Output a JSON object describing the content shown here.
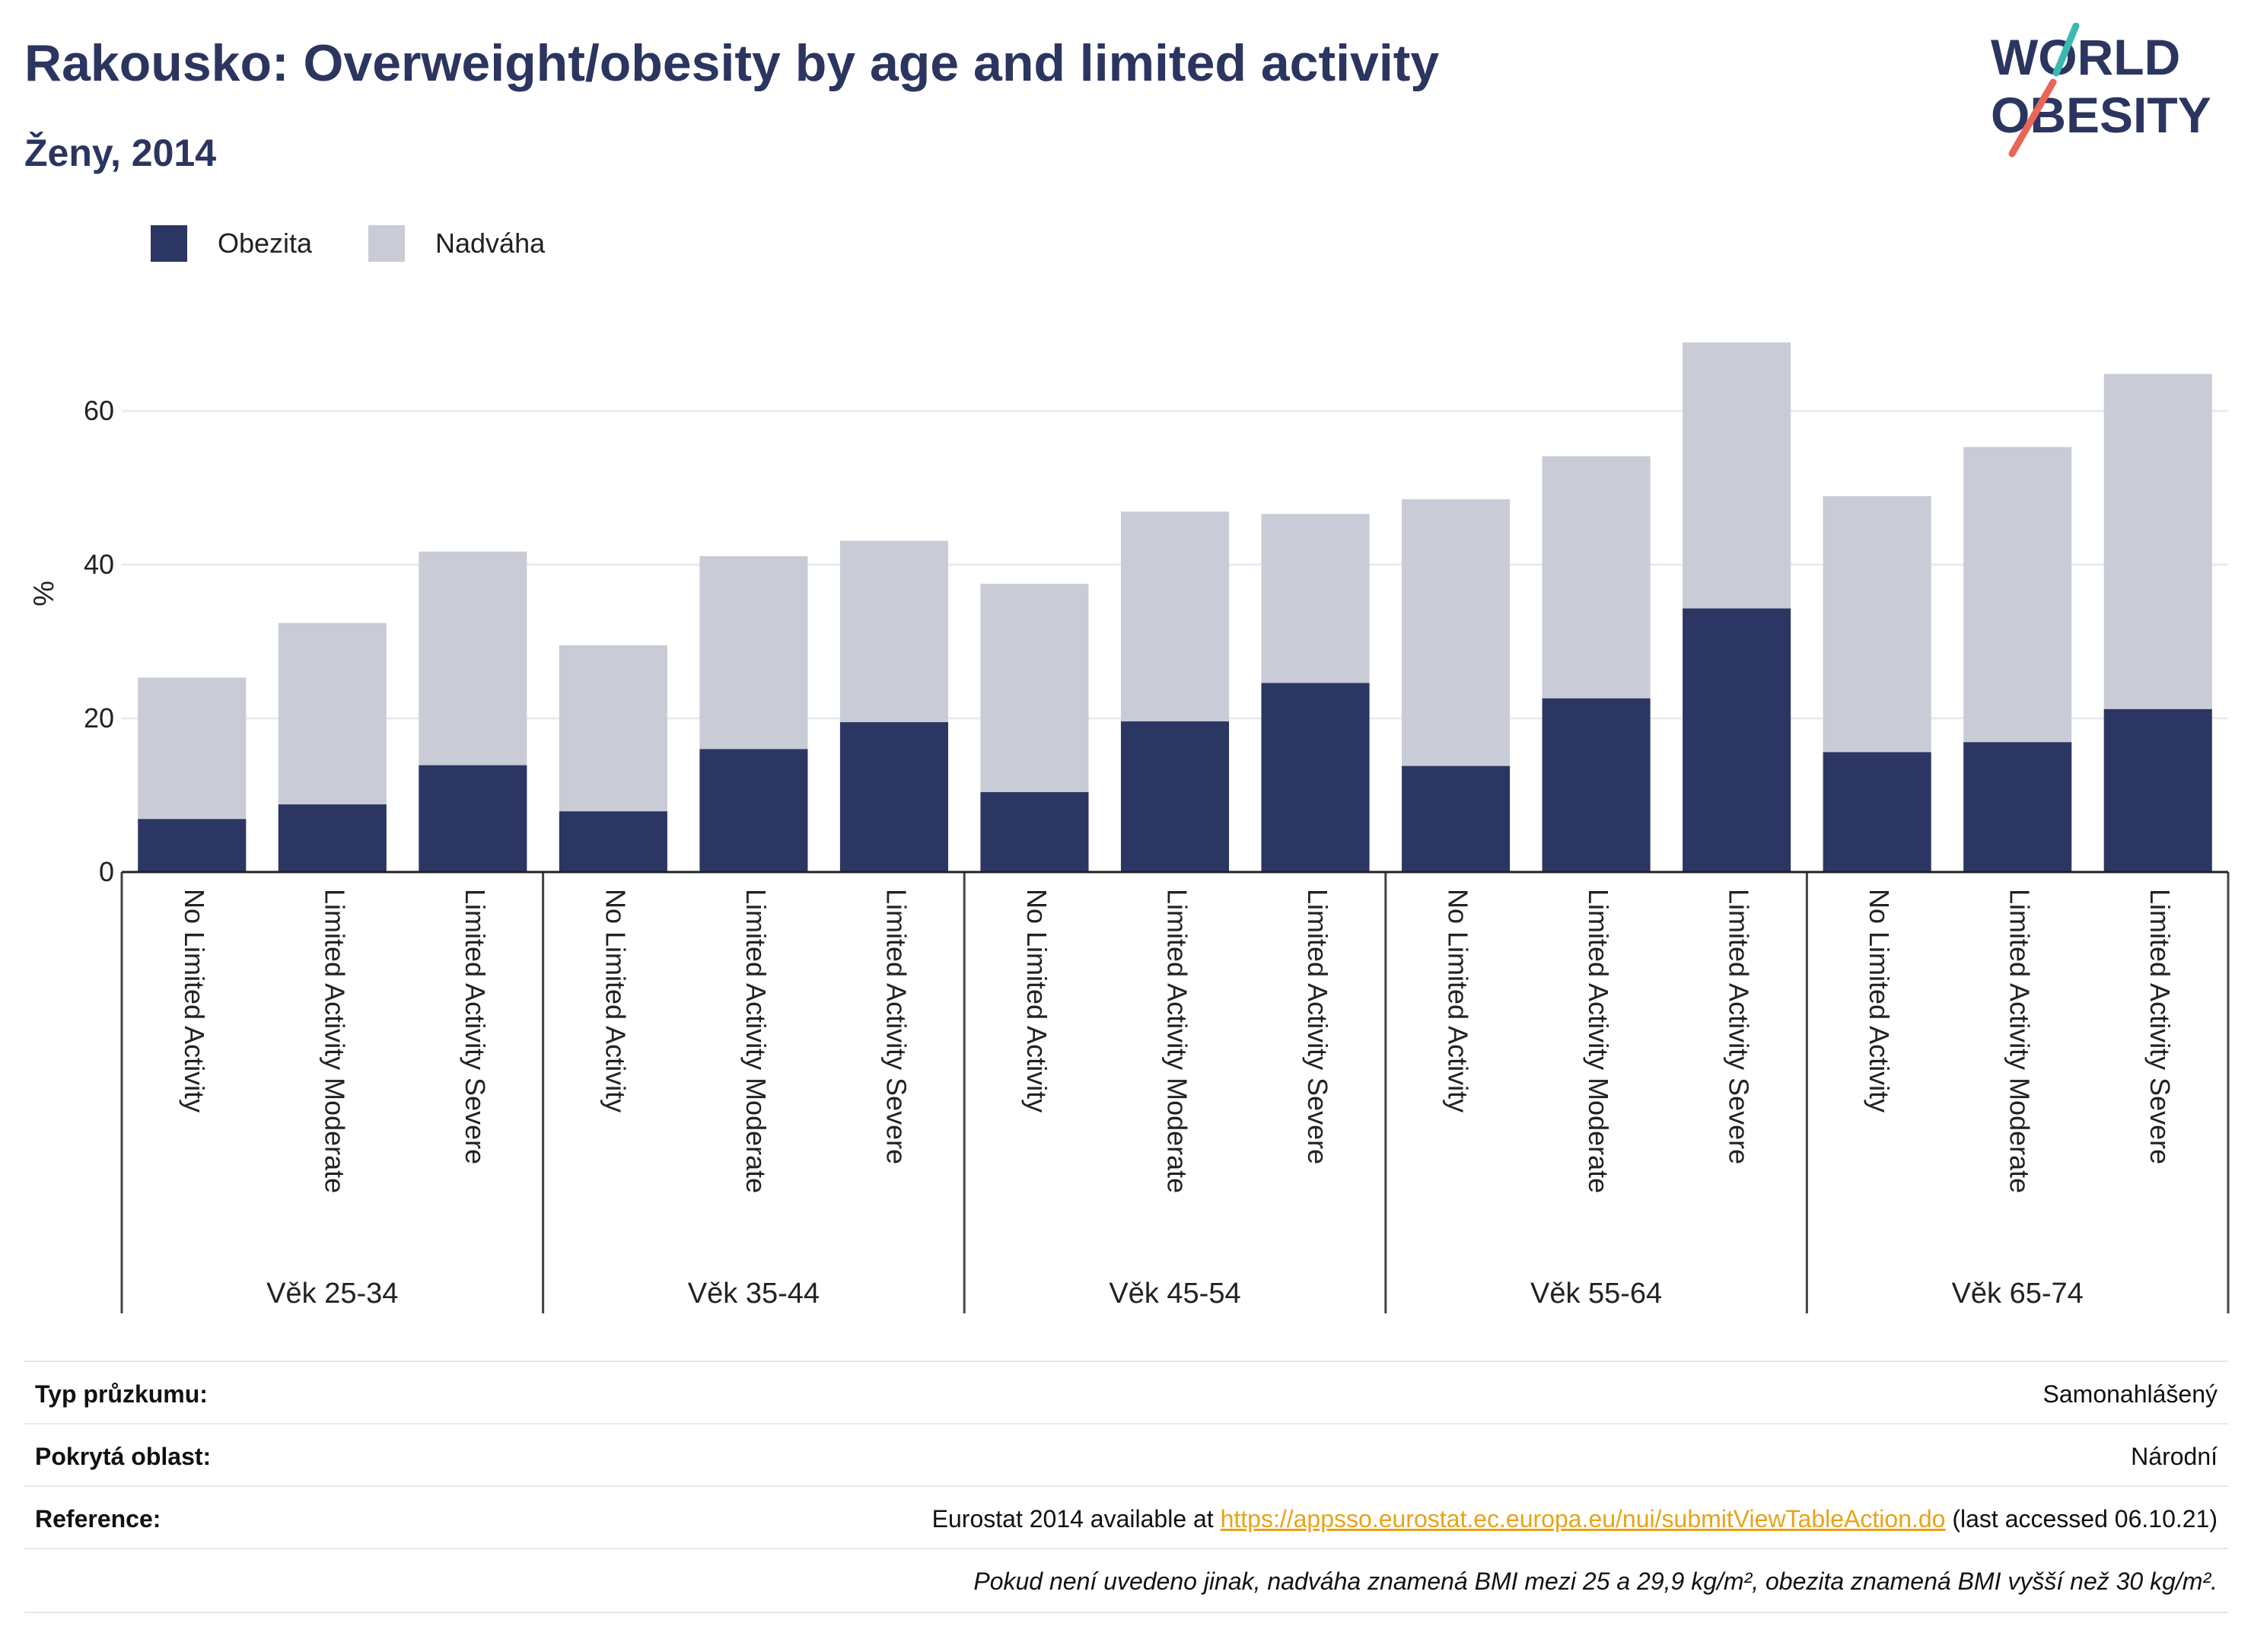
{
  "title": "Rakousko: Overweight/obesity by age and limited activity",
  "subtitle": "Ženy, 2014",
  "logo": {
    "line1": "WORLD",
    "line2": "OBESITY"
  },
  "colors": {
    "obesity": "#2b3663",
    "overweight": "#c9cbd6",
    "title": "#2b3560",
    "link": "#e8a317"
  },
  "legend": [
    {
      "label": "Obezita",
      "color": "#2b3663"
    },
    {
      "label": "Nadváha",
      "color": "#c9cbd6"
    }
  ],
  "chart_data": {
    "type": "bar",
    "stacked": true,
    "ylabel": "%",
    "ylim": [
      0,
      72
    ],
    "yticks": [
      0,
      20,
      40,
      60
    ],
    "grid": true,
    "legend_position": "top-left",
    "groups": [
      "Věk 25-34",
      "Věk 35-44",
      "Věk 45-54",
      "Věk 55-64",
      "Věk 65-74"
    ],
    "categories": [
      "No Limited Activity",
      "Limited Activity Moderate",
      "Limited Activity Severe"
    ],
    "series": [
      {
        "name": "Obezita",
        "values": [
          [
            6.9,
            8.8,
            13.9
          ],
          [
            7.9,
            16.0,
            19.5
          ],
          [
            10.4,
            19.6,
            24.6
          ],
          [
            13.8,
            22.6,
            34.3
          ],
          [
            15.6,
            16.9,
            21.2
          ]
        ]
      },
      {
        "name": "Nadváha",
        "values": [
          [
            18.4,
            23.6,
            27.8
          ],
          [
            21.6,
            25.1,
            23.6
          ],
          [
            27.1,
            27.3,
            22.0
          ],
          [
            34.7,
            31.5,
            34.6
          ],
          [
            33.3,
            38.4,
            43.6
          ]
        ]
      }
    ]
  },
  "meta": {
    "rows": [
      {
        "key": "Typ průzkumu:",
        "value": "Samonahlášený"
      },
      {
        "key": "Pokrytá oblast:",
        "value": "Národní"
      }
    ],
    "reference_key": "Reference:",
    "reference_prefix": "Eurostat 2014 available at ",
    "reference_link": "https://appsso.eurostat.ec.europa.eu/nui/submitViewTableAction.do",
    "reference_suffix": " (last accessed 06.10.21)",
    "note": "Pokud není uvedeno jinak, nadváha znamená BMI mezi 25 a 29,9 kg/m², obezita znamená BMI vyšší než 30 kg/m²."
  }
}
